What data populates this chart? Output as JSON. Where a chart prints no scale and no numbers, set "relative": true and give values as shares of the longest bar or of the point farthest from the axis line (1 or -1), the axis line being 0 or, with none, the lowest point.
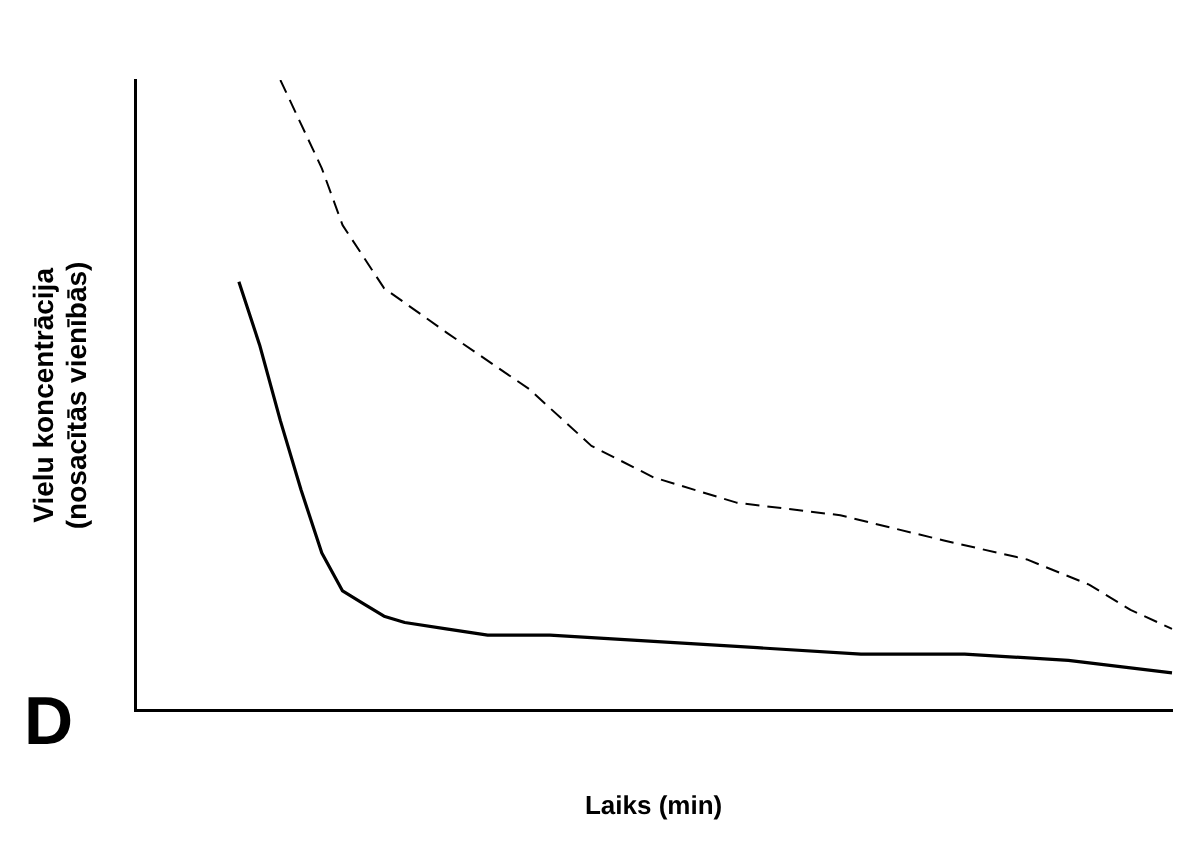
{
  "chart_data": {
    "type": "line",
    "relative": true,
    "xlabel": "Laiks (min)",
    "ylabel": "Vielu koncentrācija\n(nosacītās vienībās)",
    "annotations": [
      "D"
    ],
    "legend": false,
    "grid": false,
    "marker": "none",
    "categories": [
      null,
      null,
      null,
      null,
      null,
      null,
      null,
      null,
      null,
      null,
      null,
      null,
      null,
      null,
      null,
      null,
      null,
      null,
      null,
      null,
      null,
      null,
      null,
      null,
      null,
      null,
      null,
      null,
      null,
      null,
      null,
      null,
      null,
      null,
      null,
      null,
      null,
      null,
      null,
      null,
      null,
      null,
      null,
      null,
      null,
      null,
      null,
      null,
      null,
      null,
      null
    ],
    "series": [
      {
        "color": "#000000",
        "line_style": "solid",
        "values": [
          null,
          null,
          null,
          null,
          null,
          0.68,
          0.58,
          0.46,
          0.35,
          0.25,
          0.19,
          0.17,
          0.15,
          0.14,
          null,
          0.13,
          null,
          0.12,
          null,
          null,
          0.12,
          null,
          null,
          null,
          null,
          0.11,
          null,
          null,
          null,
          null,
          0.1,
          null,
          null,
          null,
          null,
          0.09,
          null,
          null,
          null,
          null,
          0.09,
          null,
          null,
          null,
          null,
          0.08,
          null,
          null,
          null,
          null,
          0.06
        ]
      },
      {
        "color": "#000000",
        "line_style": "dashed",
        "values": [
          null,
          null,
          null,
          null,
          null,
          null,
          null,
          1.0,
          null,
          0.86,
          0.77,
          null,
          0.67,
          null,
          null,
          0.6,
          null,
          null,
          null,
          0.51,
          null,
          null,
          0.42,
          null,
          null,
          0.37,
          null,
          null,
          null,
          0.33,
          null,
          null,
          null,
          null,
          0.31,
          null,
          null,
          null,
          null,
          0.27,
          null,
          null,
          null,
          0.24,
          null,
          null,
          0.2,
          null,
          0.16,
          null,
          0.13
        ]
      }
    ]
  }
}
